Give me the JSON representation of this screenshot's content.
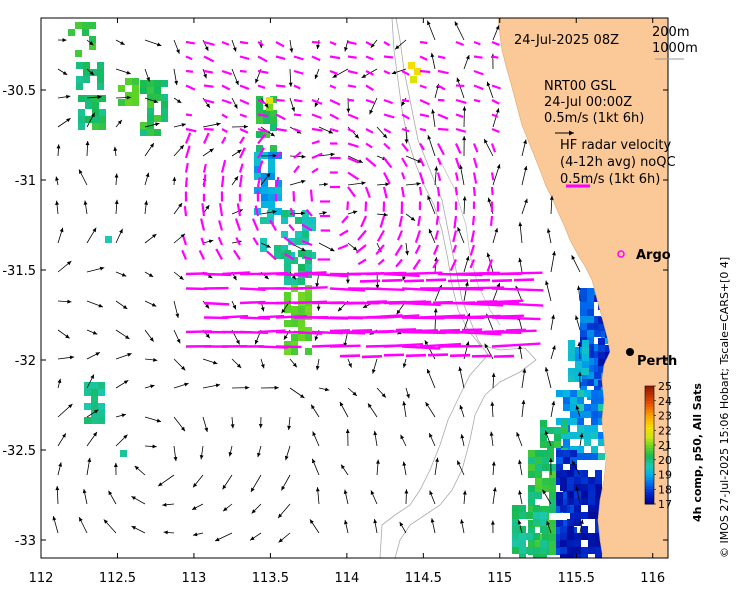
{
  "timestamp": "24-Jul-2025 08Z",
  "depth_legend": {
    "line1": "200m",
    "line2": "1000m"
  },
  "model_label": {
    "line1": "NRT00 GSL",
    "line2": "24-Jul 00:00Z",
    "scale": "0.5m/s (1kt 6h)"
  },
  "radar_label": {
    "line1": "HF radar velocity",
    "line2": "(4-12h avg) noQC",
    "scale": "0.5m/s (1kt 6h)"
  },
  "places": {
    "argo": "Argo",
    "perth": "Perth"
  },
  "colorbar": {
    "title": "4h comp, p50, All Sats",
    "ticks": [
      "25",
      "24",
      "23",
      "22",
      "21",
      "20",
      "19",
      "18",
      "17"
    ],
    "min": 17,
    "max": 25
  },
  "credit": "© IMOS 27-Jul-2025 15:06 Hobart; Tscale=CARS+[0 4]",
  "axes": {
    "x_ticks": [
      "112",
      "112.5",
      "113",
      "113.5",
      "114",
      "114.5",
      "115",
      "115.5",
      "116"
    ],
    "y_ticks": [
      "-30.5",
      "-31",
      "-31.5",
      "-32",
      "-32.5",
      "-33"
    ],
    "xlim": [
      112,
      116.1
    ],
    "ylim": [
      -33.1,
      -30.1
    ]
  },
  "colors": {
    "land": "#fbc897",
    "radar_vectors": "#ff00ff",
    "model_vectors": "#000000",
    "bathymetry": "#aaaaaa"
  }
}
